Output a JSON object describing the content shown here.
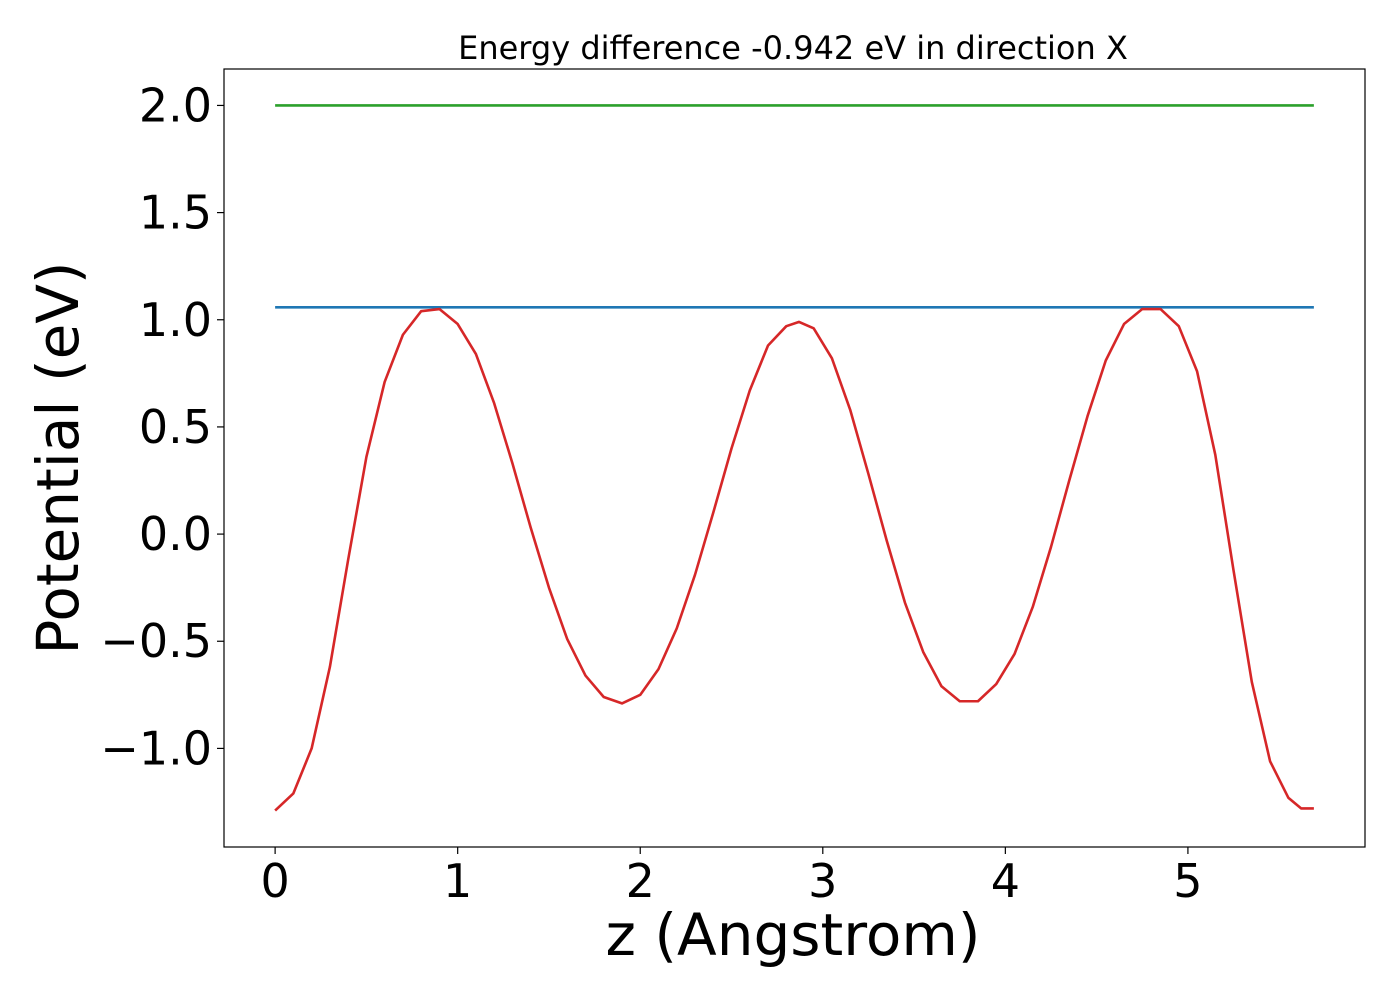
{
  "chart_data": {
    "type": "line",
    "title": "Energy difference -0.942 eV in direction X",
    "xlabel": "z (Angstrom)",
    "ylabel": "Potential (eV)",
    "xlim": [
      -0.28,
      5.97
    ],
    "ylim": [
      -1.46,
      2.17
    ],
    "xticks": [
      0,
      1,
      2,
      3,
      4,
      5
    ],
    "xtick_labels": [
      "0",
      "1",
      "2",
      "3",
      "4",
      "5"
    ],
    "yticks": [
      -1.0,
      -0.5,
      0.0,
      0.5,
      1.0,
      1.5,
      2.0
    ],
    "ytick_labels": [
      "−1.0",
      "−0.5",
      "0.0",
      "0.5",
      "1.0",
      "1.5",
      "2.0"
    ],
    "grid": false,
    "legend": "none",
    "colors": {
      "potential": "#d62728",
      "maximum": "#1f77b4",
      "reference": "#2ca02c"
    },
    "series": [
      {
        "key": "potential",
        "x": [
          0.0,
          0.1,
          0.2,
          0.3,
          0.4,
          0.5,
          0.6,
          0.7,
          0.8,
          0.9,
          1.0,
          1.1,
          1.2,
          1.3,
          1.4,
          1.5,
          1.6,
          1.7,
          1.8,
          1.9,
          2.0,
          2.1,
          2.2,
          2.3,
          2.4,
          2.5,
          2.6,
          2.7,
          2.8,
          2.87,
          2.95,
          3.05,
          3.15,
          3.25,
          3.35,
          3.45,
          3.55,
          3.65,
          3.75,
          3.85,
          3.95,
          4.05,
          4.15,
          4.25,
          4.35,
          4.45,
          4.55,
          4.65,
          4.75,
          4.85,
          4.95,
          5.05,
          5.15,
          5.25,
          5.35,
          5.45,
          5.55,
          5.62,
          5.69
        ],
        "y": [
          -1.29,
          -1.21,
          -1.0,
          -0.62,
          -0.12,
          0.36,
          0.71,
          0.93,
          1.04,
          1.05,
          0.98,
          0.84,
          0.61,
          0.33,
          0.03,
          -0.25,
          -0.49,
          -0.66,
          -0.76,
          -0.79,
          -0.75,
          -0.63,
          -0.44,
          -0.19,
          0.1,
          0.4,
          0.67,
          0.88,
          0.97,
          0.99,
          0.96,
          0.82,
          0.58,
          0.28,
          -0.03,
          -0.32,
          -0.55,
          -0.71,
          -0.78,
          -0.78,
          -0.7,
          -0.56,
          -0.34,
          -0.06,
          0.25,
          0.55,
          0.81,
          0.98,
          1.05,
          1.05,
          0.97,
          0.76,
          0.37,
          -0.17,
          -0.69,
          -1.06,
          -1.23,
          -1.28,
          -1.28
        ]
      },
      {
        "key": "maximum",
        "x": [
          0.0,
          5.69
        ],
        "y": [
          1.058,
          1.058
        ]
      },
      {
        "key": "reference",
        "x": [
          0.0,
          5.69
        ],
        "y": [
          2.0,
          2.0
        ]
      }
    ]
  }
}
